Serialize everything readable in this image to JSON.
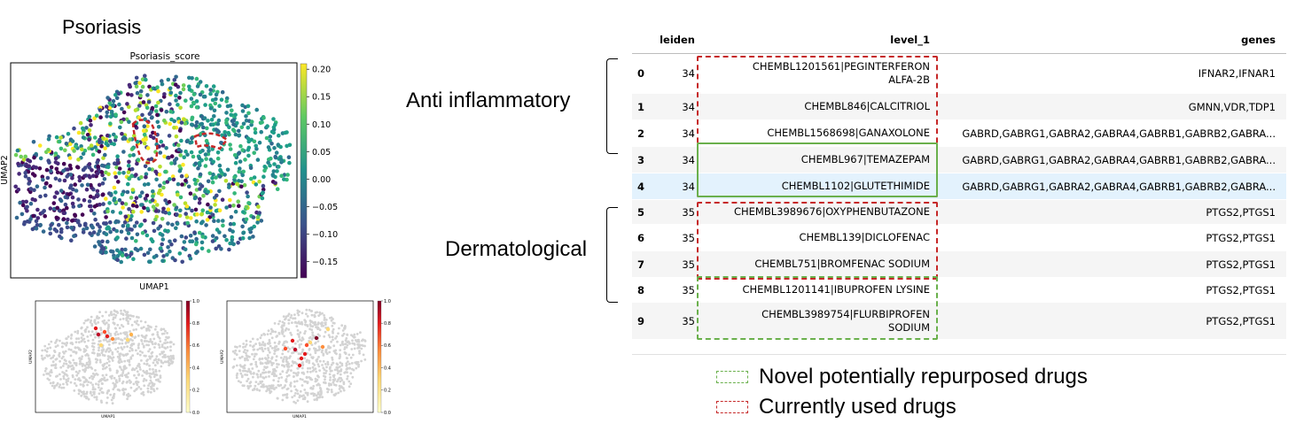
{
  "figure": {
    "title": "Psoriasis",
    "group_labels": {
      "anti": "Anti inflammatory",
      "derm": "Dermatological"
    },
    "legend": {
      "novel": "Novel potentially repurposed drugs",
      "current": "Currently used drugs"
    },
    "colors": {
      "red_box": "#c62828",
      "green_box": "#6ab04c",
      "table_highlight": "#e3f2fd"
    }
  },
  "chart_data": [
    {
      "type": "scatter",
      "title": "Psoriasis_score",
      "xlabel": "UMAP1",
      "ylabel": "UMAP2",
      "colormap": "viridis",
      "colorbar_ticks": [
        "0.20",
        "0.15",
        "0.10",
        "0.05",
        "0.00",
        "−0.05",
        "−0.10",
        "−0.15"
      ],
      "colorbar_range": [
        -0.18,
        0.21
      ],
      "grid": false
    },
    {
      "type": "scatter",
      "xlabel": "UMAP1",
      "ylabel": "UMAP2",
      "colormap": "YlOrRd",
      "colorbar_ticks": [
        "1.0",
        "0.8",
        "0.6",
        "0.4",
        "0.2",
        "0.0"
      ],
      "colorbar_range": [
        0,
        1
      ],
      "highlighted_points": 8
    },
    {
      "type": "scatter",
      "xlabel": "UMAP1",
      "ylabel": "UMAP2",
      "colormap": "YlOrRd",
      "colorbar_ticks": [
        "1.0",
        "0.8",
        "0.6",
        "0.4",
        "0.2",
        "0.0"
      ],
      "colorbar_range": [
        0,
        1
      ],
      "highlighted_points": 11
    },
    {
      "type": "table",
      "columns": [
        "",
        "leiden",
        "level_1",
        "genes"
      ],
      "rows": [
        [
          "0",
          "34",
          "CHEMBL1201561|PEGINTERFERON ALFA-2B",
          "IFNAR2,IFNAR1"
        ],
        [
          "1",
          "34",
          "CHEMBL846|CALCITRIOL",
          "GMNN,VDR,TDP1"
        ],
        [
          "2",
          "34",
          "CHEMBL1568698|GANAXOLONE",
          "GABRD,GABRG1,GABRA2,GABRA4,GABRB1,GABRB2,GABRA..."
        ],
        [
          "3",
          "34",
          "CHEMBL967|TEMAZEPAM",
          "GABRD,GABRG1,GABRA2,GABRA4,GABRB1,GABRB2,GABRA..."
        ],
        [
          "4",
          "34",
          "CHEMBL1102|GLUTETHIMIDE",
          "GABRD,GABRG1,GABRA2,GABRA4,GABRB1,GABRB2,GABRA..."
        ],
        [
          "5",
          "35",
          "CHEMBL3989676|OXYPHENBUTAZONE",
          "PTGS2,PTGS1"
        ],
        [
          "6",
          "35",
          "CHEMBL139|DICLOFENAC",
          "PTGS2,PTGS1"
        ],
        [
          "7",
          "35",
          "CHEMBL751|BROMFENAC SODIUM",
          "PTGS2,PTGS1"
        ],
        [
          "8",
          "35",
          "CHEMBL1201141|IBUPROFEN LYSINE",
          "PTGS2,PTGS1"
        ],
        [
          "9",
          "35",
          "CHEMBL3989754|FLURBIPROFEN SODIUM",
          "PTGS2,PTGS1"
        ]
      ]
    }
  ]
}
